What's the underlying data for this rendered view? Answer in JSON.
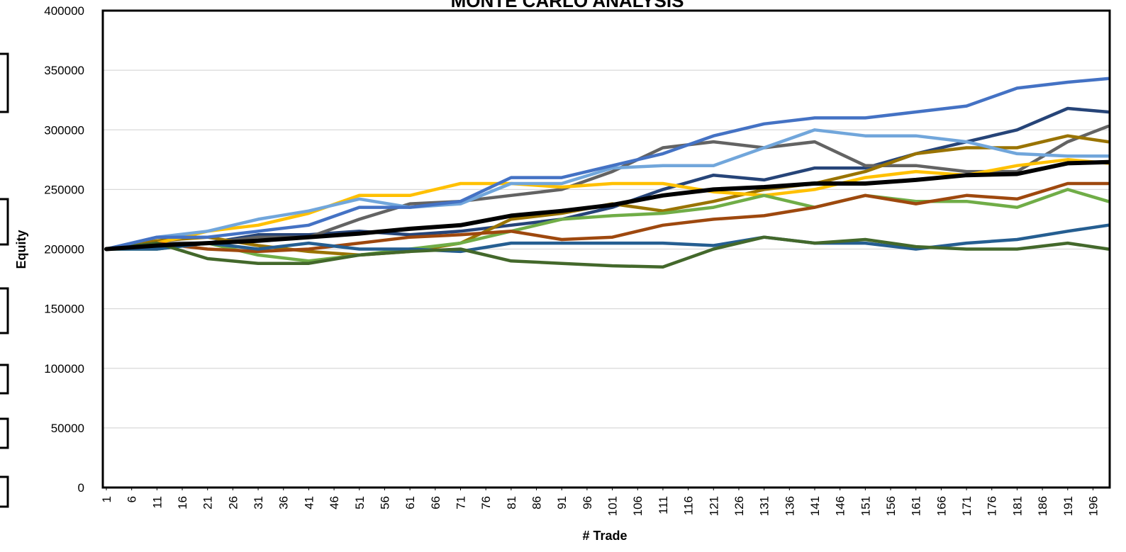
{
  "chart_data": {
    "type": "line",
    "title": "MONTE CARLO ANALYSIS",
    "x_label": "# Trade",
    "y_label": "Equity",
    "grid": true,
    "xlim": [
      0.3,
      199.3
    ],
    "ylim": [
      0,
      400000
    ],
    "yticks": [
      0,
      50000,
      100000,
      150000,
      200000,
      250000,
      300000,
      350000,
      400000
    ],
    "xticks": [
      1,
      6,
      11,
      16,
      21,
      26,
      31,
      36,
      41,
      46,
      51,
      56,
      61,
      66,
      71,
      76,
      81,
      86,
      91,
      96,
      101,
      106,
      111,
      116,
      121,
      126,
      131,
      136,
      141,
      146,
      151,
      156,
      161,
      166,
      171,
      176,
      181,
      186,
      191,
      196
    ],
    "x": [
      1,
      11,
      21,
      31,
      41,
      51,
      61,
      71,
      81,
      91,
      101,
      111,
      121,
      131,
      141,
      151,
      161,
      171,
      181,
      191,
      199
    ],
    "series": [
      {
        "color": "#264478",
        "values": [
          200000,
          205000,
          205000,
          212000,
          212000,
          215000,
          212000,
          215000,
          220000,
          225000,
          235000,
          250000,
          262000,
          258000,
          268000,
          268000,
          280000,
          290000,
          300000,
          318000,
          315000
        ]
      },
      {
        "color": "#636363",
        "values": [
          200000,
          205000,
          205000,
          210000,
          210000,
          225000,
          238000,
          240000,
          245000,
          250000,
          265000,
          285000,
          290000,
          285000,
          290000,
          270000,
          270000,
          265000,
          265000,
          290000,
          303000
        ]
      },
      {
        "color": "#997300",
        "values": [
          200000,
          207000,
          210000,
          203000,
          198000,
          195000,
          198000,
          205000,
          225000,
          230000,
          238000,
          232000,
          240000,
          250000,
          255000,
          265000,
          280000,
          285000,
          285000,
          295000,
          290000
        ]
      },
      {
        "color": "#FFC000",
        "values": [
          200000,
          205000,
          215000,
          220000,
          230000,
          245000,
          245000,
          255000,
          255000,
          252000,
          255000,
          255000,
          248000,
          245000,
          250000,
          260000,
          265000,
          262000,
          270000,
          275000,
          272000
        ]
      },
      {
        "color": "#70AD47",
        "values": [
          200000,
          200000,
          205000,
          195000,
          190000,
          195000,
          200000,
          205000,
          215000,
          225000,
          228000,
          230000,
          235000,
          245000,
          235000,
          245000,
          240000,
          240000,
          235000,
          250000,
          240000
        ]
      },
      {
        "color": "#9E480E",
        "values": [
          200000,
          205000,
          200000,
          198000,
          200000,
          205000,
          210000,
          212000,
          215000,
          208000,
          210000,
          220000,
          225000,
          228000,
          235000,
          245000,
          238000,
          245000,
          242000,
          255000,
          255000
        ]
      },
      {
        "color": "#255E91",
        "values": [
          200000,
          200000,
          205000,
          200000,
          205000,
          200000,
          200000,
          198000,
          205000,
          205000,
          205000,
          205000,
          203000,
          210000,
          205000,
          205000,
          200000,
          205000,
          208000,
          215000,
          220000
        ]
      },
      {
        "color": "#43682B",
        "values": [
          200000,
          205000,
          192000,
          188000,
          188000,
          195000,
          198000,
          200000,
          190000,
          188000,
          186000,
          185000,
          200000,
          210000,
          205000,
          208000,
          202000,
          200000,
          200000,
          205000,
          200000
        ]
      },
      {
        "color": "#71A6DB",
        "values": [
          200000,
          210000,
          215000,
          225000,
          232000,
          242000,
          235000,
          238000,
          255000,
          255000,
          268000,
          270000,
          270000,
          285000,
          300000,
          295000,
          295000,
          290000,
          280000,
          278000,
          278000
        ]
      },
      {
        "color": "#4472C4",
        "values": [
          200000,
          210000,
          210000,
          215000,
          220000,
          235000,
          235000,
          240000,
          260000,
          260000,
          270000,
          280000,
          295000,
          305000,
          310000,
          310000,
          315000,
          320000,
          335000,
          340000,
          343000
        ]
      },
      {
        "color": "#000000",
        "values": [
          200000,
          203000,
          205000,
          207000,
          210000,
          213000,
          217000,
          220000,
          228000,
          232000,
          237000,
          245000,
          250000,
          252000,
          255000,
          255000,
          258000,
          262000,
          263000,
          272000,
          273000
        ]
      }
    ]
  }
}
